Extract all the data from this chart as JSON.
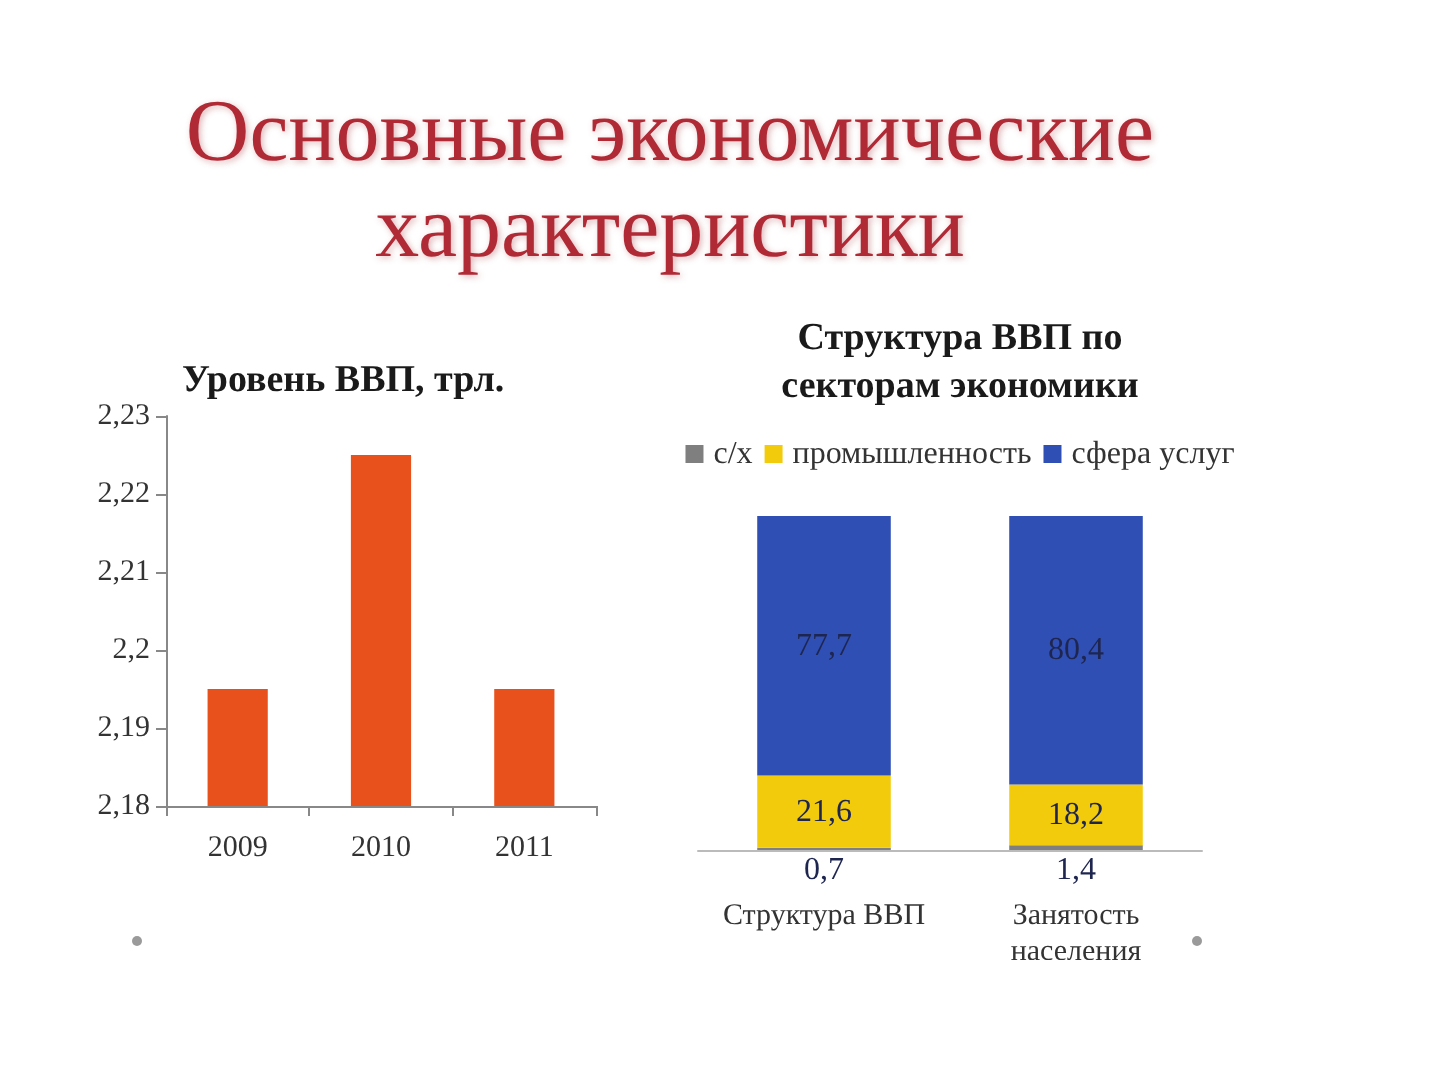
{
  "chart_data": [
    {
      "type": "other",
      "title": "Основные экономические характеристики"
    },
    {
      "type": "bar",
      "title": "Уровень ВВП, трл.",
      "categories": [
        "2009",
        "2010",
        "2011"
      ],
      "values": [
        2.195,
        2.225,
        2.195
      ],
      "color": "#e8501c",
      "ylim": [
        2.18,
        2.23
      ],
      "yticks": [
        {
          "value": 2.18,
          "label": "2,18"
        },
        {
          "value": 2.19,
          "label": "2,19"
        },
        {
          "value": 2.2,
          "label": "2,2"
        },
        {
          "value": 2.21,
          "label": "2,21"
        },
        {
          "value": 2.22,
          "label": "2,22"
        },
        {
          "value": 2.23,
          "label": "2,23"
        }
      ]
    },
    {
      "type": "bar",
      "title": "Структура ВВП по секторам экономики",
      "categories": [
        "Структура ВВП",
        "Занятость населения"
      ],
      "stacked": true,
      "legend": "top",
      "series": [
        {
          "name": "с/х",
          "color": "#7f7f7f",
          "values": [
            0.7,
            1.4
          ],
          "value_labels": [
            "0,7",
            "1,4"
          ]
        },
        {
          "name": "промышленность",
          "color": "#f2cc0c",
          "values": [
            21.6,
            18.2
          ],
          "value_labels": [
            "21,6",
            "18,2"
          ]
        },
        {
          "name": "сфера услуг",
          "color": "#2f4fb5",
          "values": [
            77.7,
            80.4
          ],
          "value_labels": [
            "77,7",
            "80,4"
          ]
        }
      ]
    }
  ]
}
